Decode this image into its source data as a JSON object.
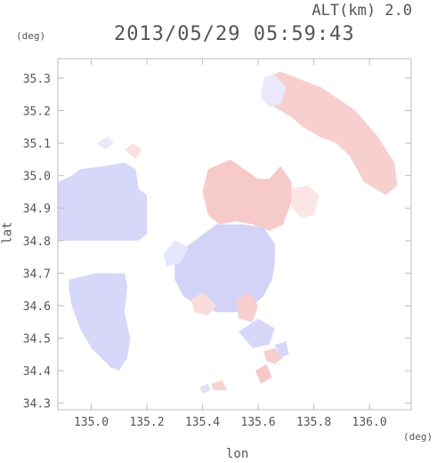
{
  "header": {
    "altitude_label": "ALT(km) 2.0",
    "timestamp": "2013/05/29 05:59:43"
  },
  "axes": {
    "y_unit": "(deg)",
    "x_unit": "(deg)",
    "x_label": "lon",
    "y_label": "lat"
  },
  "colors": {
    "toward": "#c8c8f6",
    "away": "#f6c8c8",
    "frame": "#bdbdbd",
    "text": "#555555"
  },
  "chart_data": {
    "type": "heatmap",
    "xlabel": "lon",
    "ylabel": "lat",
    "xlim": [
      134.88,
      136.15
    ],
    "ylim": [
      34.28,
      35.36
    ],
    "x_ticks": [
      135.0,
      135.2,
      135.4,
      135.6,
      135.8,
      136.0
    ],
    "x_tick_labels": [
      "135.0",
      "135.2",
      "135.4",
      "135.6",
      "135.8",
      "136.0"
    ],
    "y_ticks": [
      34.3,
      34.4,
      34.5,
      34.6,
      34.7,
      34.8,
      34.9,
      35.0,
      35.1,
      35.2,
      35.3
    ],
    "y_tick_labels": [
      "34.3",
      "34.4",
      "34.5",
      "34.6",
      "34.7",
      "34.8",
      "34.9",
      "35.0",
      "35.1",
      "35.2",
      "35.3"
    ],
    "grid": false,
    "regions": [
      {
        "sign": "toward",
        "intensity": 0.45,
        "polygon": [
          [
            134.88,
            34.98
          ],
          [
            134.93,
            35.0
          ],
          [
            134.96,
            35.02
          ],
          [
            135.05,
            35.03
          ],
          [
            135.12,
            35.04
          ],
          [
            135.16,
            35.02
          ],
          [
            135.17,
            34.96
          ],
          [
            135.2,
            34.94
          ],
          [
            135.2,
            34.82
          ],
          [
            135.17,
            34.8
          ],
          [
            135.06,
            34.8
          ],
          [
            134.88,
            34.8
          ]
        ]
      },
      {
        "sign": "toward",
        "intensity": 0.25,
        "polygon": [
          [
            135.02,
            35.1
          ],
          [
            135.06,
            35.12
          ],
          [
            135.08,
            35.1
          ],
          [
            135.05,
            35.08
          ]
        ]
      },
      {
        "sign": "toward",
        "intensity": 0.45,
        "polygon": [
          [
            134.92,
            34.68
          ],
          [
            135.02,
            34.7
          ],
          [
            135.12,
            34.7
          ],
          [
            135.13,
            34.66
          ],
          [
            135.12,
            34.58
          ],
          [
            135.14,
            34.5
          ],
          [
            135.13,
            34.44
          ],
          [
            135.1,
            34.4
          ],
          [
            135.07,
            34.41
          ],
          [
            135.0,
            34.47
          ],
          [
            134.96,
            34.53
          ],
          [
            134.93,
            34.6
          ],
          [
            134.92,
            34.65
          ]
        ]
      },
      {
        "sign": "away",
        "intensity": 0.35,
        "polygon": [
          [
            135.12,
            35.08
          ],
          [
            135.15,
            35.1
          ],
          [
            135.18,
            35.08
          ],
          [
            135.16,
            35.05
          ]
        ]
      },
      {
        "sign": "away",
        "intensity": 0.6,
        "polygon": [
          [
            135.42,
            35.02
          ],
          [
            135.5,
            35.05
          ],
          [
            135.55,
            35.02
          ],
          [
            135.6,
            34.99
          ],
          [
            135.64,
            34.99
          ],
          [
            135.68,
            35.03
          ],
          [
            135.72,
            34.98
          ],
          [
            135.72,
            34.92
          ],
          [
            135.69,
            34.85
          ],
          [
            135.64,
            34.83
          ],
          [
            135.58,
            34.85
          ],
          [
            135.52,
            34.86
          ],
          [
            135.46,
            34.85
          ],
          [
            135.42,
            34.88
          ],
          [
            135.4,
            34.95
          ]
        ]
      },
      {
        "sign": "away",
        "intensity": 0.3,
        "polygon": [
          [
            135.72,
            34.96
          ],
          [
            135.78,
            34.97
          ],
          [
            135.82,
            34.94
          ],
          [
            135.8,
            34.88
          ],
          [
            135.76,
            34.87
          ],
          [
            135.72,
            34.9
          ]
        ]
      },
      {
        "sign": "away",
        "intensity": 0.55,
        "polygon": [
          [
            135.62,
            35.3
          ],
          [
            135.68,
            35.32
          ],
          [
            135.74,
            35.3
          ],
          [
            135.83,
            35.27
          ],
          [
            135.95,
            35.2
          ],
          [
            136.03,
            35.12
          ],
          [
            136.09,
            35.04
          ],
          [
            136.1,
            34.97
          ],
          [
            136.06,
            34.94
          ],
          [
            135.98,
            34.98
          ],
          [
            135.93,
            35.06
          ],
          [
            135.88,
            35.1
          ],
          [
            135.82,
            35.12
          ],
          [
            135.76,
            35.15
          ],
          [
            135.72,
            35.18
          ],
          [
            135.68,
            35.2
          ],
          [
            135.64,
            35.22
          ]
        ]
      },
      {
        "sign": "toward",
        "intensity": 0.25,
        "polygon": [
          [
            135.62,
            35.3
          ],
          [
            135.66,
            35.31
          ],
          [
            135.7,
            35.27
          ],
          [
            135.68,
            35.22
          ],
          [
            135.64,
            35.21
          ],
          [
            135.61,
            35.24
          ]
        ]
      },
      {
        "sign": "toward",
        "intensity": 0.5,
        "polygon": [
          [
            135.34,
            34.78
          ],
          [
            135.45,
            34.85
          ],
          [
            135.55,
            34.85
          ],
          [
            135.62,
            34.84
          ],
          [
            135.66,
            34.79
          ],
          [
            135.66,
            34.73
          ],
          [
            135.65,
            34.68
          ],
          [
            135.62,
            34.63
          ],
          [
            135.58,
            34.6
          ],
          [
            135.52,
            34.58
          ],
          [
            135.45,
            34.58
          ],
          [
            135.38,
            34.6
          ],
          [
            135.33,
            34.63
          ],
          [
            135.3,
            34.68
          ],
          [
            135.3,
            34.74
          ]
        ]
      },
      {
        "sign": "toward",
        "intensity": 0.3,
        "polygon": [
          [
            135.26,
            34.76
          ],
          [
            135.3,
            34.8
          ],
          [
            135.35,
            34.78
          ],
          [
            135.32,
            34.73
          ],
          [
            135.27,
            34.72
          ]
        ]
      },
      {
        "sign": "away",
        "intensity": 0.4,
        "polygon": [
          [
            135.36,
            34.62
          ],
          [
            135.4,
            34.64
          ],
          [
            135.45,
            34.6
          ],
          [
            135.42,
            34.57
          ],
          [
            135.37,
            34.58
          ]
        ]
      },
      {
        "sign": "away",
        "intensity": 0.55,
        "polygon": [
          [
            135.52,
            34.62
          ],
          [
            135.57,
            34.64
          ],
          [
            135.6,
            34.6
          ],
          [
            135.58,
            34.55
          ],
          [
            135.53,
            34.56
          ]
        ]
      },
      {
        "sign": "toward",
        "intensity": 0.45,
        "polygon": [
          [
            135.53,
            34.52
          ],
          [
            135.6,
            34.56
          ],
          [
            135.66,
            34.53
          ],
          [
            135.64,
            34.48
          ],
          [
            135.58,
            34.47
          ]
        ]
      },
      {
        "sign": "away",
        "intensity": 0.55,
        "polygon": [
          [
            135.62,
            34.46
          ],
          [
            135.66,
            34.47
          ],
          [
            135.69,
            34.44
          ],
          [
            135.66,
            34.42
          ],
          [
            135.63,
            34.43
          ]
        ]
      },
      {
        "sign": "toward",
        "intensity": 0.45,
        "polygon": [
          [
            135.66,
            34.48
          ],
          [
            135.7,
            34.49
          ],
          [
            135.71,
            34.45
          ],
          [
            135.68,
            34.44
          ]
        ]
      },
      {
        "sign": "away",
        "intensity": 0.7,
        "polygon": [
          [
            135.59,
            34.4
          ],
          [
            135.63,
            34.42
          ],
          [
            135.65,
            34.38
          ],
          [
            135.61,
            34.36
          ]
        ]
      },
      {
        "sign": "away",
        "intensity": 0.5,
        "polygon": [
          [
            135.43,
            34.36
          ],
          [
            135.47,
            34.37
          ],
          [
            135.49,
            34.34
          ],
          [
            135.44,
            34.34
          ]
        ]
      },
      {
        "sign": "toward",
        "intensity": 0.35,
        "polygon": [
          [
            135.39,
            34.35
          ],
          [
            135.42,
            34.36
          ],
          [
            135.43,
            34.34
          ],
          [
            135.4,
            34.33
          ]
        ]
      }
    ]
  }
}
